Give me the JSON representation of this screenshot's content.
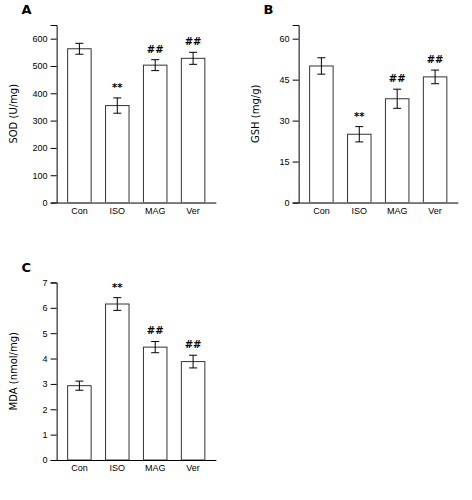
{
  "chart_data": [
    {
      "type": "bar",
      "title": "A",
      "ylabel": "SOD (U/mg)",
      "categories": [
        "Con",
        "ISO",
        "MAG",
        "Ver"
      ],
      "values": [
        563,
        355,
        503,
        528
      ],
      "errors": [
        20,
        28,
        20,
        22
      ],
      "color": "#ffffff",
      "ylim": [
        0,
        650
      ],
      "yticks": [
        0,
        100,
        200,
        300,
        400,
        500,
        600
      ],
      "annotations": [
        null,
        "**",
        "##",
        "##"
      ]
    },
    {
      "type": "bar",
      "title": "B",
      "ylabel": "GSH (mg/g)",
      "categories": [
        "Con",
        "ISO",
        "MAG",
        "Ver"
      ],
      "values": [
        50,
        25,
        38,
        46
      ],
      "errors": [
        3,
        2.8,
        3.5,
        2.5
      ],
      "color": "#ffffff",
      "ylim": [
        0,
        65
      ],
      "yticks": [
        0,
        15,
        30,
        45,
        60
      ],
      "annotations": [
        null,
        "**",
        "##",
        "##"
      ]
    },
    {
      "type": "bar",
      "title": "C",
      "ylabel": "MDA (nmol/mg)",
      "categories": [
        "Con",
        "ISO",
        "MAG",
        "Ver"
      ],
      "values": [
        2.93,
        6.15,
        4.45,
        3.88
      ],
      "errors": [
        0.18,
        0.25,
        0.22,
        0.25
      ],
      "color": "#ffffff",
      "ylim": [
        0,
        7.0
      ],
      "yticks": [
        0,
        1.0,
        2.0,
        3.0,
        4.0,
        5.0,
        6.0,
        7.0
      ],
      "annotations": [
        null,
        "**",
        "##",
        "##"
      ]
    }
  ]
}
